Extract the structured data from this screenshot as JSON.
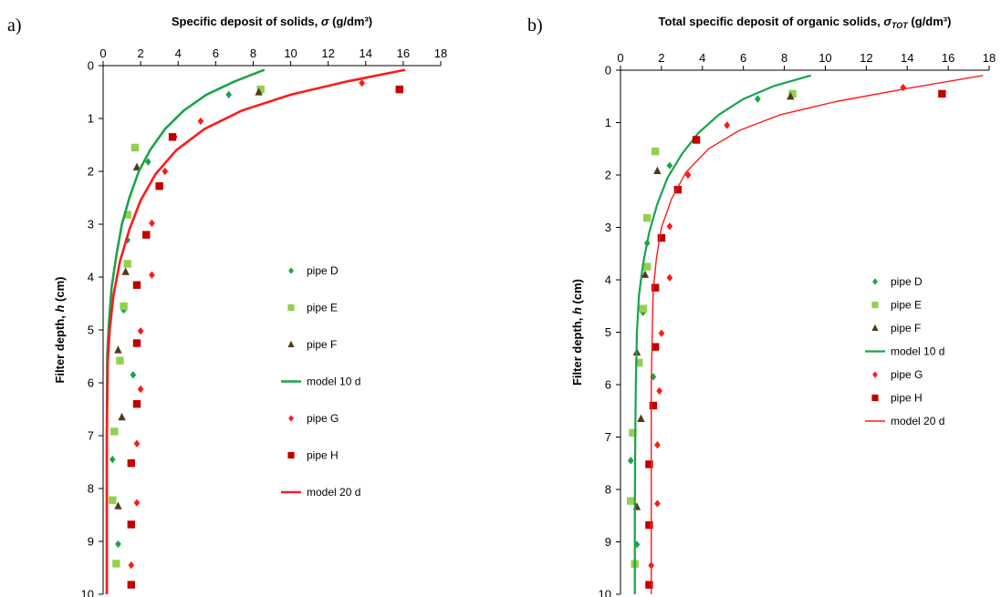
{
  "chart_data": [
    {
      "panel": "a)",
      "type": "scatter",
      "title": "Specific deposit of solids, σ (g/dm³)",
      "title_parts": {
        "text": "Specific deposit of solids, ",
        "symbol": "σ",
        "sub": "",
        "unit": " (g/dm³)"
      },
      "xlabel": "Specific deposit of solids, σ (g/dm³)",
      "ylabel": "Filter depth, h (cm)",
      "ylabel_parts": {
        "text": "Filter depth, ",
        "symbol": "h",
        "unit": " (cm)"
      },
      "xlim": [
        0,
        18
      ],
      "ylim": [
        0,
        10
      ],
      "y_inverted": true,
      "x_axis_position": "top",
      "xticks": [
        0,
        2,
        4,
        6,
        8,
        10,
        12,
        14,
        16,
        18
      ],
      "yticks": [
        0,
        1,
        2,
        3,
        4,
        5,
        6,
        7,
        8,
        9,
        10
      ],
      "grid": false,
      "legend_position": "right",
      "series": [
        {
          "name": "pipe D",
          "kind": "marker",
          "marker": "diamond",
          "color": "#1aa34a",
          "points": [
            [
              6.7,
              0.55
            ],
            [
              2.4,
              1.82
            ],
            [
              1.3,
              3.3
            ],
            [
              1.1,
              4.62
            ],
            [
              1.6,
              5.85
            ],
            [
              0.5,
              7.45
            ],
            [
              0.8,
              9.05
            ]
          ]
        },
        {
          "name": "pipe E",
          "kind": "marker",
          "marker": "square",
          "color": "#92d050",
          "points": [
            [
              8.4,
              0.45
            ],
            [
              1.7,
              1.55
            ],
            [
              1.3,
              2.82
            ],
            [
              1.3,
              3.75
            ],
            [
              1.1,
              4.55
            ],
            [
              0.9,
              5.58
            ],
            [
              0.6,
              6.92
            ],
            [
              0.5,
              8.22
            ],
            [
              0.7,
              9.42
            ]
          ]
        },
        {
          "name": "pipe F",
          "kind": "marker",
          "marker": "triangle",
          "color": "#4f3b1c",
          "points": [
            [
              8.3,
              0.5
            ],
            [
              1.8,
              1.92
            ],
            [
              1.2,
              3.9
            ],
            [
              0.8,
              5.38
            ],
            [
              1.0,
              6.65
            ],
            [
              0.8,
              8.33
            ]
          ]
        },
        {
          "name": "model  10 d",
          "kind": "line",
          "color": "#1aa34a",
          "stroke": 2.6,
          "points": [
            [
              8.6,
              0.08
            ],
            [
              7.0,
              0.3
            ],
            [
              5.5,
              0.55
            ],
            [
              4.3,
              0.85
            ],
            [
              3.3,
              1.2
            ],
            [
              2.5,
              1.6
            ],
            [
              1.9,
              2.0
            ],
            [
              1.4,
              2.5
            ],
            [
              1.0,
              3.0
            ],
            [
              0.7,
              3.6
            ],
            [
              0.45,
              4.2
            ],
            [
              0.3,
              4.9
            ],
            [
              0.22,
              5.5
            ],
            [
              0.2,
              7.0
            ],
            [
              0.2,
              8.5
            ],
            [
              0.2,
              10.0
            ]
          ]
        },
        {
          "name": "pipe G",
          "kind": "marker",
          "marker": "diamond",
          "color": "#ff1a1a",
          "points": [
            [
              13.8,
              0.33
            ],
            [
              5.2,
              1.05
            ],
            [
              3.8,
              1.35
            ],
            [
              3.3,
              2.0
            ],
            [
              2.6,
              2.98
            ],
            [
              2.6,
              3.96
            ],
            [
              2.0,
              5.02
            ],
            [
              2.0,
              6.12
            ],
            [
              1.8,
              7.15
            ],
            [
              1.8,
              8.27
            ],
            [
              1.5,
              9.45
            ]
          ]
        },
        {
          "name": "pipe H",
          "kind": "marker",
          "marker": "square",
          "color": "#c00000",
          "points": [
            [
              15.8,
              0.45
            ],
            [
              3.7,
              1.35
            ],
            [
              3.0,
              2.28
            ],
            [
              2.3,
              3.2
            ],
            [
              1.8,
              4.15
            ],
            [
              1.8,
              5.25
            ],
            [
              1.8,
              6.4
            ],
            [
              1.5,
              7.52
            ],
            [
              1.5,
              8.68
            ],
            [
              1.5,
              9.82
            ]
          ]
        },
        {
          "name": "model 20 d",
          "kind": "line",
          "color": "#ff1a1a",
          "stroke": 2.6,
          "points": [
            [
              16.1,
              0.08
            ],
            [
              13.0,
              0.3
            ],
            [
              10.0,
              0.55
            ],
            [
              7.4,
              0.85
            ],
            [
              5.4,
              1.2
            ],
            [
              3.9,
              1.6
            ],
            [
              2.8,
              2.05
            ],
            [
              2.0,
              2.55
            ],
            [
              1.4,
              3.1
            ],
            [
              0.9,
              3.7
            ],
            [
              0.55,
              4.35
            ],
            [
              0.35,
              5.0
            ],
            [
              0.25,
              5.6
            ],
            [
              0.2,
              7.0
            ],
            [
              0.2,
              8.5
            ],
            [
              0.2,
              10.0
            ]
          ]
        }
      ]
    },
    {
      "panel": "b)",
      "type": "scatter",
      "title": "Total specific deposit of organic solids, σTOT (g/dm³)",
      "title_parts": {
        "text": "Total specific deposit of organic solids, ",
        "symbol": "σ",
        "sub": "TOT",
        "unit": " (g/dm³)"
      },
      "xlabel": "Total specific deposit of organic solids, σTOT (g/dm³)",
      "ylabel": "Filter depth, h (cm)",
      "ylabel_parts": {
        "text": "Filter depth, ",
        "symbol": "h",
        "unit": " (cm)"
      },
      "xlim": [
        0,
        18
      ],
      "ylim": [
        0,
        10
      ],
      "y_inverted": true,
      "x_axis_position": "top",
      "xticks": [
        0,
        2,
        4,
        6,
        8,
        10,
        12,
        14,
        16,
        18
      ],
      "yticks": [
        0,
        1,
        2,
        3,
        4,
        5,
        6,
        7,
        8,
        9,
        10
      ],
      "grid": false,
      "legend_position": "right",
      "series": [
        {
          "name": "pipe D",
          "kind": "marker",
          "marker": "diamond",
          "color": "#1aa34a",
          "points": [
            [
              6.7,
              0.55
            ],
            [
              2.4,
              1.82
            ],
            [
              1.3,
              3.3
            ],
            [
              1.1,
              4.62
            ],
            [
              1.6,
              5.85
            ],
            [
              0.5,
              7.45
            ],
            [
              0.8,
              9.05
            ]
          ]
        },
        {
          "name": "pipe E",
          "kind": "marker",
          "marker": "square",
          "color": "#92d050",
          "points": [
            [
              8.4,
              0.45
            ],
            [
              1.7,
              1.55
            ],
            [
              1.3,
              2.82
            ],
            [
              1.3,
              3.75
            ],
            [
              1.1,
              4.55
            ],
            [
              0.9,
              5.58
            ],
            [
              0.6,
              6.92
            ],
            [
              0.5,
              8.22
            ],
            [
              0.7,
              9.42
            ]
          ]
        },
        {
          "name": "pipe F",
          "kind": "marker",
          "marker": "triangle",
          "color": "#4f3b1c",
          "points": [
            [
              8.3,
              0.5
            ],
            [
              1.8,
              1.92
            ],
            [
              1.2,
              3.9
            ],
            [
              0.8,
              5.38
            ],
            [
              1.0,
              6.65
            ],
            [
              0.8,
              8.33
            ]
          ]
        },
        {
          "name": "model  10 d",
          "kind": "line",
          "color": "#1aa34a",
          "stroke": 2.2,
          "points": [
            [
              9.3,
              0.1
            ],
            [
              7.5,
              0.3
            ],
            [
              6.0,
              0.55
            ],
            [
              4.8,
              0.85
            ],
            [
              3.8,
              1.2
            ],
            [
              3.0,
              1.6
            ],
            [
              2.3,
              2.05
            ],
            [
              1.8,
              2.55
            ],
            [
              1.4,
              3.1
            ],
            [
              1.1,
              3.7
            ],
            [
              0.9,
              4.3
            ],
            [
              0.8,
              5.0
            ],
            [
              0.75,
              6.0
            ],
            [
              0.72,
              7.0
            ],
            [
              0.7,
              8.5
            ],
            [
              0.7,
              10.0
            ]
          ]
        },
        {
          "name": "pipe G",
          "kind": "marker",
          "marker": "diamond",
          "color": "#ff1a1a",
          "points": [
            [
              13.8,
              0.33
            ],
            [
              5.2,
              1.05
            ],
            [
              3.3,
              2.0
            ],
            [
              2.4,
              2.98
            ],
            [
              2.4,
              3.96
            ],
            [
              2.0,
              5.02
            ],
            [
              1.9,
              6.12
            ],
            [
              1.8,
              7.15
            ],
            [
              1.8,
              8.27
            ],
            [
              1.5,
              9.45
            ]
          ]
        },
        {
          "name": "pipe H",
          "kind": "marker",
          "marker": "square",
          "color": "#c00000",
          "points": [
            [
              15.7,
              0.45
            ],
            [
              3.7,
              1.33
            ],
            [
              2.8,
              2.28
            ],
            [
              2.0,
              3.2
            ],
            [
              1.7,
              4.15
            ],
            [
              1.7,
              5.28
            ],
            [
              1.6,
              6.4
            ],
            [
              1.4,
              7.52
            ],
            [
              1.4,
              8.68
            ],
            [
              1.4,
              9.82
            ]
          ]
        },
        {
          "name": "model 20 d",
          "kind": "line",
          "color": "#ff1a1a",
          "stroke": 1.4,
          "points": [
            [
              17.7,
              0.1
            ],
            [
              14.0,
              0.35
            ],
            [
              10.5,
              0.6
            ],
            [
              7.8,
              0.85
            ],
            [
              5.8,
              1.15
            ],
            [
              4.3,
              1.5
            ],
            [
              3.2,
              1.95
            ],
            [
              2.5,
              2.45
            ],
            [
              2.0,
              3.0
            ],
            [
              1.75,
              3.6
            ],
            [
              1.6,
              4.2
            ],
            [
              1.55,
              5.0
            ],
            [
              1.5,
              6.0
            ],
            [
              1.5,
              7.5
            ],
            [
              1.5,
              8.5
            ],
            [
              1.5,
              10.0
            ]
          ]
        }
      ]
    }
  ]
}
